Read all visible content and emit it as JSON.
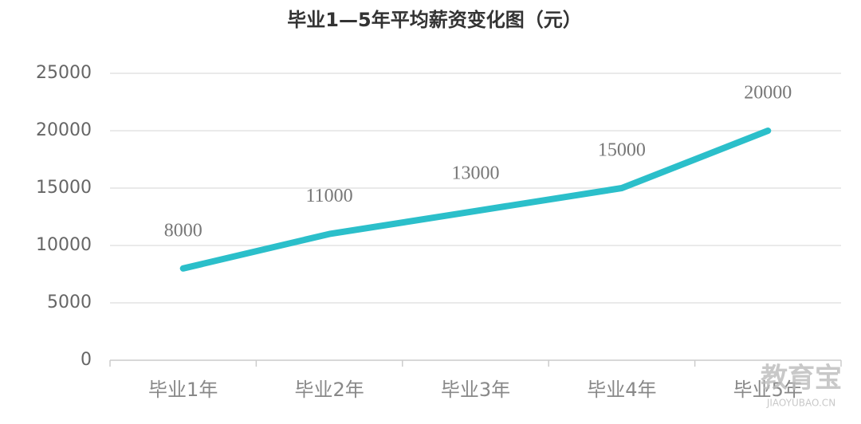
{
  "chart_data": {
    "type": "line",
    "title": "毕业1—5年平均薪资变化图（元）",
    "categories": [
      "毕业1年",
      "毕业2年",
      "毕业3年",
      "毕业4年",
      "毕业5年"
    ],
    "values": [
      8000,
      11000,
      13000,
      15000,
      20000
    ],
    "color": "#2bbfca",
    "ylim": [
      0,
      25000
    ],
    "yticks": [
      0,
      5000,
      10000,
      15000,
      20000,
      25000
    ],
    "grid": true
  },
  "watermark": {
    "name": "教育宝",
    "url": "JIAOYUBAO.CN"
  }
}
